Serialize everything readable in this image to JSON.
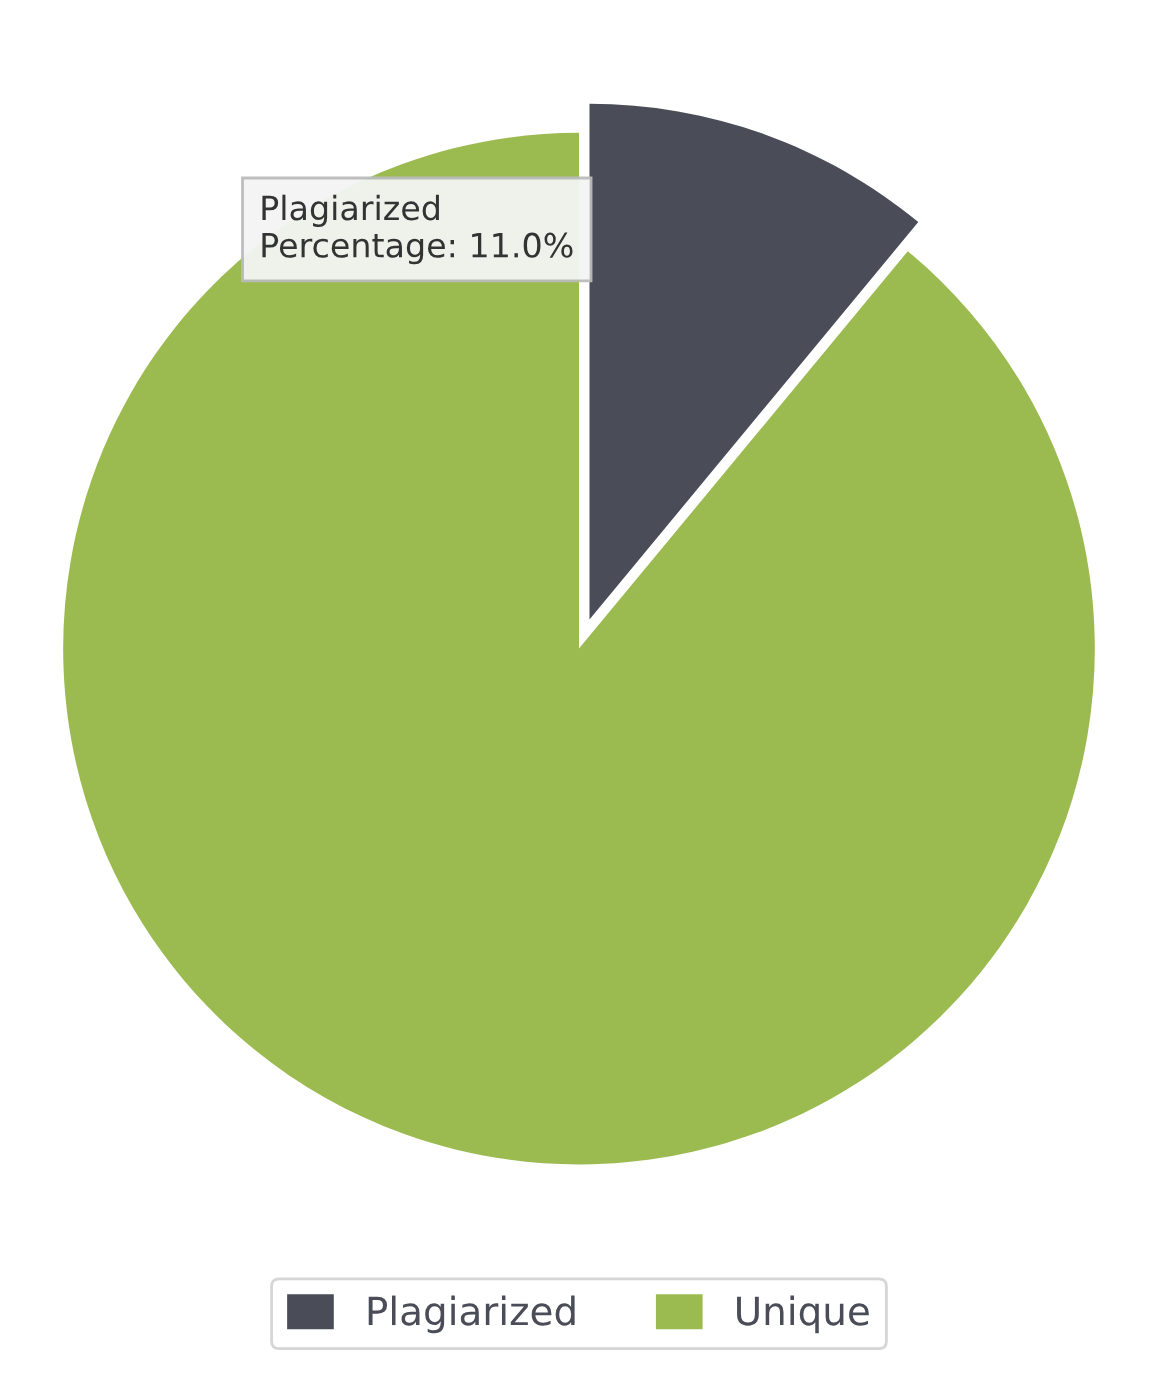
{
  "chart_data": {
    "type": "pie",
    "categories": [
      "Plagiarized",
      "Unique"
    ],
    "values": [
      11,
      89
    ],
    "colors": [
      "#4a4d58",
      "#9bbb50"
    ],
    "legend": "bottom",
    "annotations": [
      "Plagiarized",
      "Percentage: 11.0%"
    ]
  }
}
